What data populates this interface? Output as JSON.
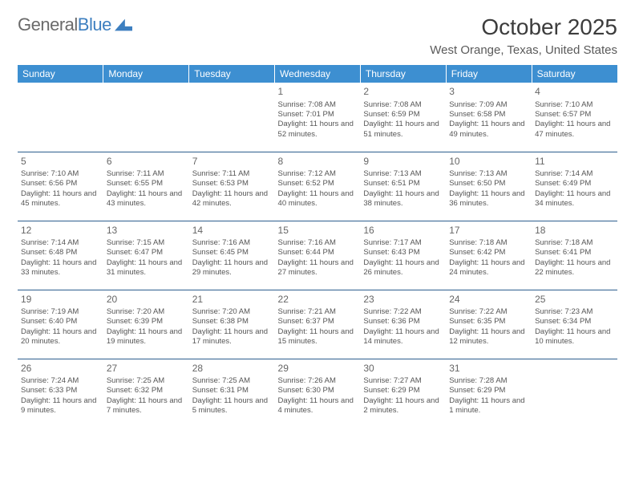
{
  "brand": {
    "part1": "General",
    "part2": "Blue"
  },
  "title": "October 2025",
  "location": "West Orange, Texas, United States",
  "colors": {
    "header_bg": "#3d8fd1",
    "header_text": "#ffffff",
    "row_border": "#2d5e8e",
    "logo_blue": "#3d7fc0",
    "text": "#555555",
    "title_text": "#3c3c3c"
  },
  "day_headers": [
    "Sunday",
    "Monday",
    "Tuesday",
    "Wednesday",
    "Thursday",
    "Friday",
    "Saturday"
  ],
  "weeks": [
    [
      null,
      null,
      null,
      {
        "n": "1",
        "sr": "7:08 AM",
        "ss": "7:01 PM",
        "dl": "11 hours and 52 minutes."
      },
      {
        "n": "2",
        "sr": "7:08 AM",
        "ss": "6:59 PM",
        "dl": "11 hours and 51 minutes."
      },
      {
        "n": "3",
        "sr": "7:09 AM",
        "ss": "6:58 PM",
        "dl": "11 hours and 49 minutes."
      },
      {
        "n": "4",
        "sr": "7:10 AM",
        "ss": "6:57 PM",
        "dl": "11 hours and 47 minutes."
      }
    ],
    [
      {
        "n": "5",
        "sr": "7:10 AM",
        "ss": "6:56 PM",
        "dl": "11 hours and 45 minutes."
      },
      {
        "n": "6",
        "sr": "7:11 AM",
        "ss": "6:55 PM",
        "dl": "11 hours and 43 minutes."
      },
      {
        "n": "7",
        "sr": "7:11 AM",
        "ss": "6:53 PM",
        "dl": "11 hours and 42 minutes."
      },
      {
        "n": "8",
        "sr": "7:12 AM",
        "ss": "6:52 PM",
        "dl": "11 hours and 40 minutes."
      },
      {
        "n": "9",
        "sr": "7:13 AM",
        "ss": "6:51 PM",
        "dl": "11 hours and 38 minutes."
      },
      {
        "n": "10",
        "sr": "7:13 AM",
        "ss": "6:50 PM",
        "dl": "11 hours and 36 minutes."
      },
      {
        "n": "11",
        "sr": "7:14 AM",
        "ss": "6:49 PM",
        "dl": "11 hours and 34 minutes."
      }
    ],
    [
      {
        "n": "12",
        "sr": "7:14 AM",
        "ss": "6:48 PM",
        "dl": "11 hours and 33 minutes."
      },
      {
        "n": "13",
        "sr": "7:15 AM",
        "ss": "6:47 PM",
        "dl": "11 hours and 31 minutes."
      },
      {
        "n": "14",
        "sr": "7:16 AM",
        "ss": "6:45 PM",
        "dl": "11 hours and 29 minutes."
      },
      {
        "n": "15",
        "sr": "7:16 AM",
        "ss": "6:44 PM",
        "dl": "11 hours and 27 minutes."
      },
      {
        "n": "16",
        "sr": "7:17 AM",
        "ss": "6:43 PM",
        "dl": "11 hours and 26 minutes."
      },
      {
        "n": "17",
        "sr": "7:18 AM",
        "ss": "6:42 PM",
        "dl": "11 hours and 24 minutes."
      },
      {
        "n": "18",
        "sr": "7:18 AM",
        "ss": "6:41 PM",
        "dl": "11 hours and 22 minutes."
      }
    ],
    [
      {
        "n": "19",
        "sr": "7:19 AM",
        "ss": "6:40 PM",
        "dl": "11 hours and 20 minutes."
      },
      {
        "n": "20",
        "sr": "7:20 AM",
        "ss": "6:39 PM",
        "dl": "11 hours and 19 minutes."
      },
      {
        "n": "21",
        "sr": "7:20 AM",
        "ss": "6:38 PM",
        "dl": "11 hours and 17 minutes."
      },
      {
        "n": "22",
        "sr": "7:21 AM",
        "ss": "6:37 PM",
        "dl": "11 hours and 15 minutes."
      },
      {
        "n": "23",
        "sr": "7:22 AM",
        "ss": "6:36 PM",
        "dl": "11 hours and 14 minutes."
      },
      {
        "n": "24",
        "sr": "7:22 AM",
        "ss": "6:35 PM",
        "dl": "11 hours and 12 minutes."
      },
      {
        "n": "25",
        "sr": "7:23 AM",
        "ss": "6:34 PM",
        "dl": "11 hours and 10 minutes."
      }
    ],
    [
      {
        "n": "26",
        "sr": "7:24 AM",
        "ss": "6:33 PM",
        "dl": "11 hours and 9 minutes."
      },
      {
        "n": "27",
        "sr": "7:25 AM",
        "ss": "6:32 PM",
        "dl": "11 hours and 7 minutes."
      },
      {
        "n": "28",
        "sr": "7:25 AM",
        "ss": "6:31 PM",
        "dl": "11 hours and 5 minutes."
      },
      {
        "n": "29",
        "sr": "7:26 AM",
        "ss": "6:30 PM",
        "dl": "11 hours and 4 minutes."
      },
      {
        "n": "30",
        "sr": "7:27 AM",
        "ss": "6:29 PM",
        "dl": "11 hours and 2 minutes."
      },
      {
        "n": "31",
        "sr": "7:28 AM",
        "ss": "6:29 PM",
        "dl": "11 hours and 1 minute."
      },
      null
    ]
  ],
  "labels": {
    "sunrise": "Sunrise:",
    "sunset": "Sunset:",
    "daylight": "Daylight:"
  }
}
